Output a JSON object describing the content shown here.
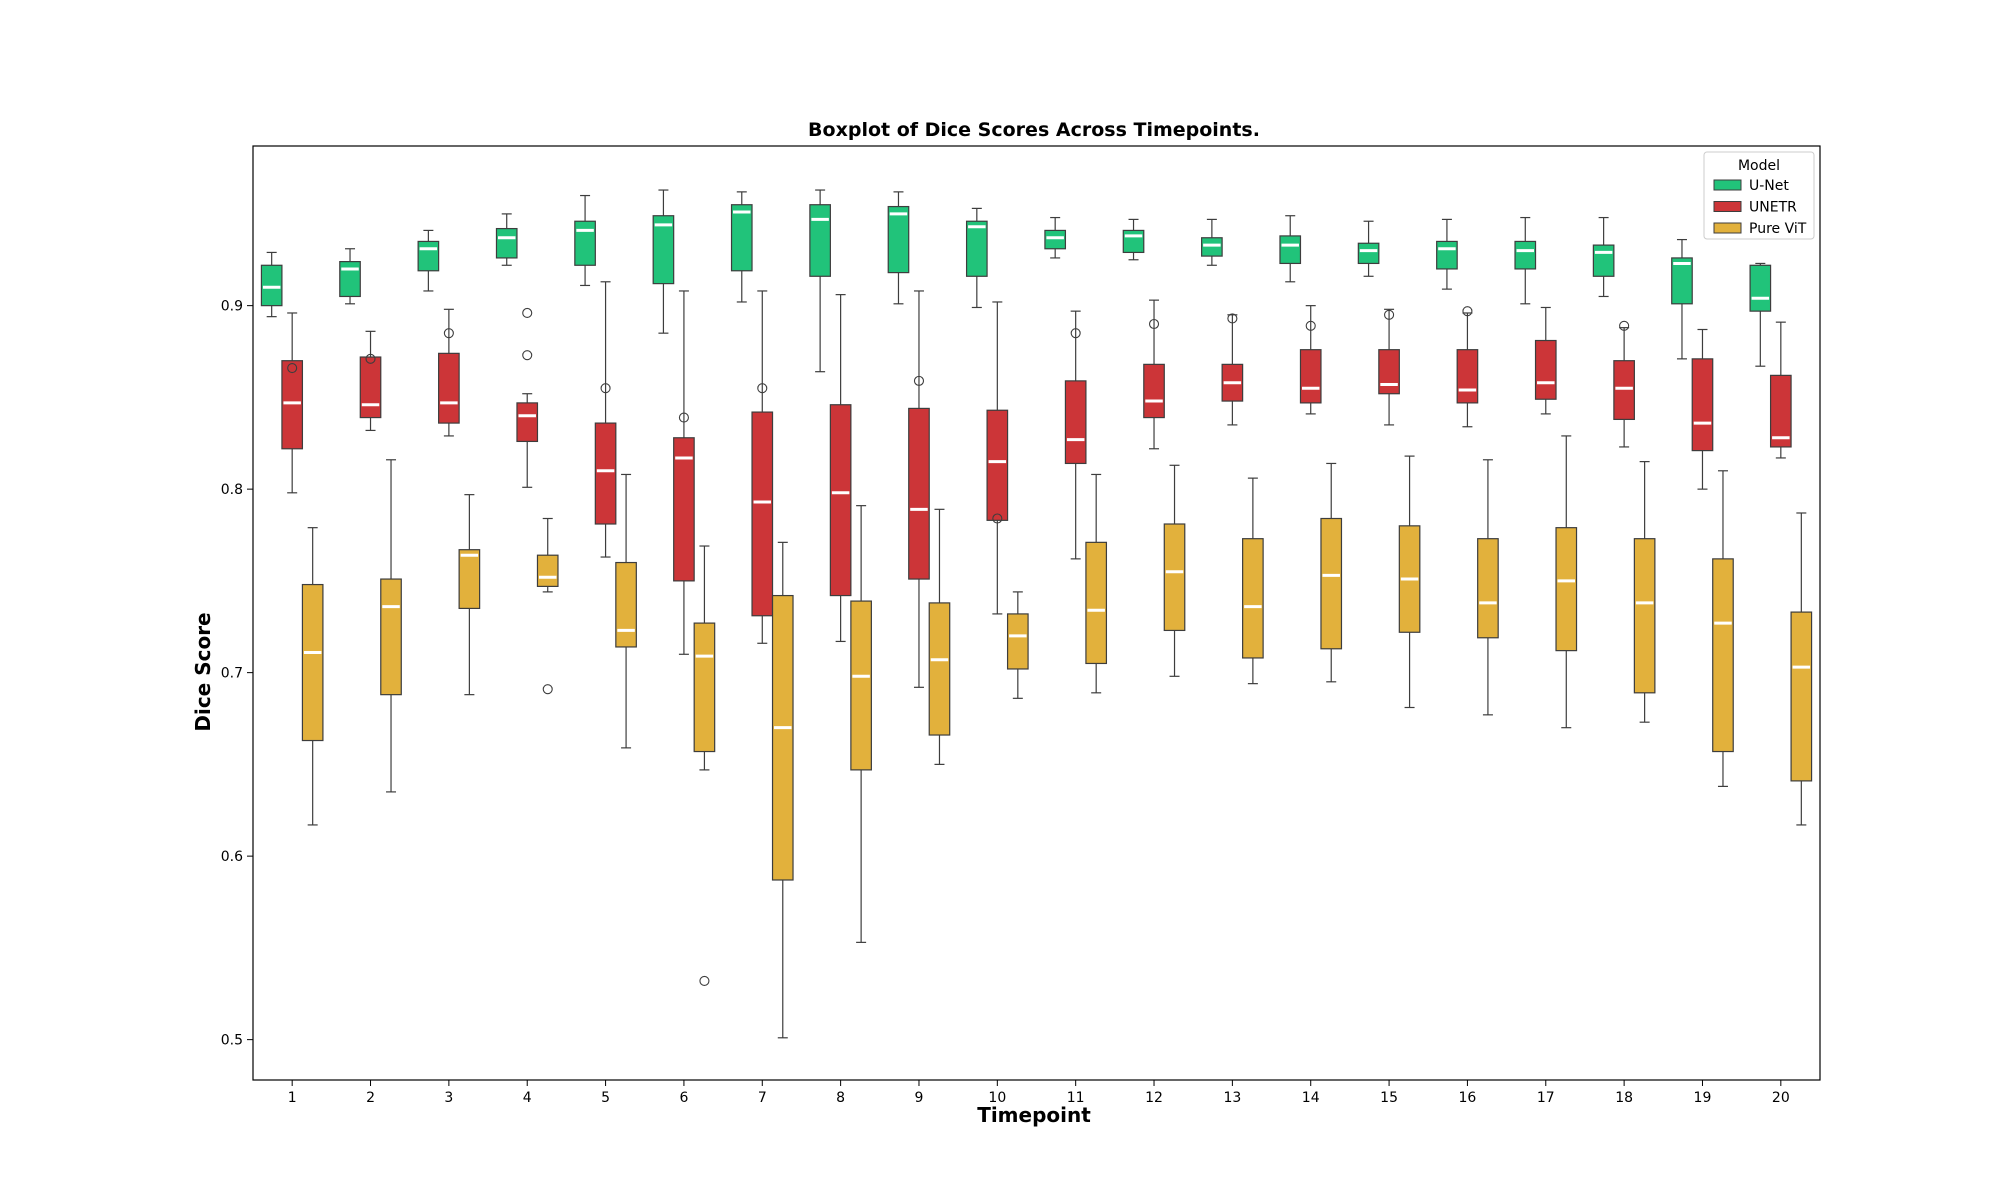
{
  "chart_data": {
    "type": "boxplot",
    "title": "Boxplot of Dice Scores Across Timepoints.",
    "xlabel": "Timepoint",
    "ylabel": "Dice Score",
    "ylim": [
      0.478,
      0.987
    ],
    "yticks": [
      0.5,
      0.6,
      0.7,
      0.8,
      0.9
    ],
    "ytick_labels": [
      "0.5",
      "0.6",
      "0.7",
      "0.8",
      "0.9"
    ],
    "categories": [
      "1",
      "2",
      "3",
      "4",
      "5",
      "6",
      "7",
      "8",
      "9",
      "10",
      "11",
      "12",
      "13",
      "14",
      "15",
      "16",
      "17",
      "18",
      "19",
      "20"
    ],
    "legend": {
      "title": "Model",
      "position": "top-right"
    },
    "series": [
      {
        "name": "U-Net",
        "color": "#21c37a",
        "stats": [
          {
            "wlo": 0.894,
            "q1": 0.9,
            "med": 0.91,
            "q3": 0.922,
            "whi": 0.929,
            "outliers": []
          },
          {
            "wlo": 0.901,
            "q1": 0.905,
            "med": 0.92,
            "q3": 0.924,
            "whi": 0.931,
            "outliers": []
          },
          {
            "wlo": 0.908,
            "q1": 0.919,
            "med": 0.931,
            "q3": 0.935,
            "whi": 0.941,
            "outliers": []
          },
          {
            "wlo": 0.922,
            "q1": 0.926,
            "med": 0.937,
            "q3": 0.942,
            "whi": 0.95,
            "outliers": []
          },
          {
            "wlo": 0.911,
            "q1": 0.922,
            "med": 0.941,
            "q3": 0.946,
            "whi": 0.96,
            "outliers": []
          },
          {
            "wlo": 0.885,
            "q1": 0.912,
            "med": 0.944,
            "q3": 0.949,
            "whi": 0.963,
            "outliers": []
          },
          {
            "wlo": 0.902,
            "q1": 0.919,
            "med": 0.951,
            "q3": 0.955,
            "whi": 0.962,
            "outliers": []
          },
          {
            "wlo": 0.864,
            "q1": 0.916,
            "med": 0.947,
            "q3": 0.955,
            "whi": 0.963,
            "outliers": []
          },
          {
            "wlo": 0.901,
            "q1": 0.918,
            "med": 0.95,
            "q3": 0.954,
            "whi": 0.962,
            "outliers": []
          },
          {
            "wlo": 0.899,
            "q1": 0.916,
            "med": 0.943,
            "q3": 0.946,
            "whi": 0.953,
            "outliers": []
          },
          {
            "wlo": 0.926,
            "q1": 0.931,
            "med": 0.937,
            "q3": 0.941,
            "whi": 0.948,
            "outliers": []
          },
          {
            "wlo": 0.925,
            "q1": 0.929,
            "med": 0.938,
            "q3": 0.941,
            "whi": 0.947,
            "outliers": []
          },
          {
            "wlo": 0.922,
            "q1": 0.927,
            "med": 0.933,
            "q3": 0.937,
            "whi": 0.947,
            "outliers": []
          },
          {
            "wlo": 0.913,
            "q1": 0.923,
            "med": 0.933,
            "q3": 0.938,
            "whi": 0.949,
            "outliers": []
          },
          {
            "wlo": 0.916,
            "q1": 0.923,
            "med": 0.93,
            "q3": 0.934,
            "whi": 0.946,
            "outliers": []
          },
          {
            "wlo": 0.909,
            "q1": 0.92,
            "med": 0.931,
            "q3": 0.935,
            "whi": 0.947,
            "outliers": []
          },
          {
            "wlo": 0.901,
            "q1": 0.92,
            "med": 0.93,
            "q3": 0.935,
            "whi": 0.948,
            "outliers": []
          },
          {
            "wlo": 0.905,
            "q1": 0.916,
            "med": 0.929,
            "q3": 0.933,
            "whi": 0.948,
            "outliers": []
          },
          {
            "wlo": 0.871,
            "q1": 0.901,
            "med": 0.923,
            "q3": 0.926,
            "whi": 0.936,
            "outliers": []
          },
          {
            "wlo": 0.867,
            "q1": 0.897,
            "med": 0.904,
            "q3": 0.922,
            "whi": 0.923,
            "outliers": []
          }
        ]
      },
      {
        "name": "UNETR",
        "color": "#cc3538",
        "stats": [
          {
            "wlo": 0.798,
            "q1": 0.822,
            "med": 0.847,
            "q3": 0.87,
            "whi": 0.896,
            "outliers": [
              0.866
            ]
          },
          {
            "wlo": 0.832,
            "q1": 0.839,
            "med": 0.846,
            "q3": 0.872,
            "whi": 0.886,
            "outliers": [
              0.871
            ]
          },
          {
            "wlo": 0.829,
            "q1": 0.836,
            "med": 0.847,
            "q3": 0.874,
            "whi": 0.898,
            "outliers": [
              0.885
            ]
          },
          {
            "wlo": 0.801,
            "q1": 0.826,
            "med": 0.84,
            "q3": 0.847,
            "whi": 0.852,
            "outliers": [
              0.873,
              0.896
            ]
          },
          {
            "wlo": 0.763,
            "q1": 0.781,
            "med": 0.81,
            "q3": 0.836,
            "whi": 0.913,
            "outliers": [
              0.855
            ]
          },
          {
            "wlo": 0.71,
            "q1": 0.75,
            "med": 0.817,
            "q3": 0.828,
            "whi": 0.908,
            "outliers": [
              0.839
            ]
          },
          {
            "wlo": 0.716,
            "q1": 0.731,
            "med": 0.793,
            "q3": 0.842,
            "whi": 0.908,
            "outliers": [
              0.855
            ]
          },
          {
            "wlo": 0.717,
            "q1": 0.742,
            "med": 0.798,
            "q3": 0.846,
            "whi": 0.906,
            "outliers": []
          },
          {
            "wlo": 0.692,
            "q1": 0.751,
            "med": 0.789,
            "q3": 0.844,
            "whi": 0.908,
            "outliers": [
              0.859
            ]
          },
          {
            "wlo": 0.732,
            "q1": 0.783,
            "med": 0.815,
            "q3": 0.843,
            "whi": 0.902,
            "outliers": [
              0.784
            ]
          },
          {
            "wlo": 0.762,
            "q1": 0.814,
            "med": 0.827,
            "q3": 0.859,
            "whi": 0.897,
            "outliers": [
              0.885
            ]
          },
          {
            "wlo": 0.822,
            "q1": 0.839,
            "med": 0.848,
            "q3": 0.868,
            "whi": 0.903,
            "outliers": [
              0.89
            ]
          },
          {
            "wlo": 0.835,
            "q1": 0.848,
            "med": 0.858,
            "q3": 0.868,
            "whi": 0.895,
            "outliers": [
              0.893
            ]
          },
          {
            "wlo": 0.841,
            "q1": 0.847,
            "med": 0.855,
            "q3": 0.876,
            "whi": 0.9,
            "outliers": [
              0.889
            ]
          },
          {
            "wlo": 0.835,
            "q1": 0.852,
            "med": 0.857,
            "q3": 0.876,
            "whi": 0.898,
            "outliers": [
              0.895
            ]
          },
          {
            "wlo": 0.834,
            "q1": 0.847,
            "med": 0.854,
            "q3": 0.876,
            "whi": 0.896,
            "outliers": [
              0.897
            ]
          },
          {
            "wlo": 0.841,
            "q1": 0.849,
            "med": 0.858,
            "q3": 0.881,
            "whi": 0.899,
            "outliers": []
          },
          {
            "wlo": 0.823,
            "q1": 0.838,
            "med": 0.855,
            "q3": 0.87,
            "whi": 0.888,
            "outliers": [
              0.889
            ]
          },
          {
            "wlo": 0.8,
            "q1": 0.821,
            "med": 0.836,
            "q3": 0.871,
            "whi": 0.887,
            "outliers": []
          },
          {
            "wlo": 0.817,
            "q1": 0.823,
            "med": 0.828,
            "q3": 0.862,
            "whi": 0.891,
            "outliers": []
          }
        ]
      },
      {
        "name": "Pure ViT",
        "color": "#e2b13c",
        "stats": [
          {
            "wlo": 0.617,
            "q1": 0.663,
            "med": 0.711,
            "q3": 0.748,
            "whi": 0.779,
            "outliers": []
          },
          {
            "wlo": 0.635,
            "q1": 0.688,
            "med": 0.736,
            "q3": 0.751,
            "whi": 0.816,
            "outliers": []
          },
          {
            "wlo": 0.688,
            "q1": 0.735,
            "med": 0.764,
            "q3": 0.767,
            "whi": 0.797,
            "outliers": []
          },
          {
            "wlo": 0.744,
            "q1": 0.747,
            "med": 0.752,
            "q3": 0.764,
            "whi": 0.784,
            "outliers": [
              0.691
            ]
          },
          {
            "wlo": 0.659,
            "q1": 0.714,
            "med": 0.723,
            "q3": 0.76,
            "whi": 0.808,
            "outliers": []
          },
          {
            "wlo": 0.647,
            "q1": 0.657,
            "med": 0.709,
            "q3": 0.727,
            "whi": 0.769,
            "outliers": [
              0.532
            ]
          },
          {
            "wlo": 0.501,
            "q1": 0.587,
            "med": 0.67,
            "q3": 0.742,
            "whi": 0.771,
            "outliers": []
          },
          {
            "wlo": 0.553,
            "q1": 0.647,
            "med": 0.698,
            "q3": 0.739,
            "whi": 0.791,
            "outliers": []
          },
          {
            "wlo": 0.65,
            "q1": 0.666,
            "med": 0.707,
            "q3": 0.738,
            "whi": 0.789,
            "outliers": []
          },
          {
            "wlo": 0.686,
            "q1": 0.702,
            "med": 0.72,
            "q3": 0.732,
            "whi": 0.744,
            "outliers": []
          },
          {
            "wlo": 0.689,
            "q1": 0.705,
            "med": 0.734,
            "q3": 0.771,
            "whi": 0.808,
            "outliers": []
          },
          {
            "wlo": 0.698,
            "q1": 0.723,
            "med": 0.755,
            "q3": 0.781,
            "whi": 0.813,
            "outliers": []
          },
          {
            "wlo": 0.694,
            "q1": 0.708,
            "med": 0.736,
            "q3": 0.773,
            "whi": 0.806,
            "outliers": []
          },
          {
            "wlo": 0.695,
            "q1": 0.713,
            "med": 0.753,
            "q3": 0.784,
            "whi": 0.814,
            "outliers": []
          },
          {
            "wlo": 0.681,
            "q1": 0.722,
            "med": 0.751,
            "q3": 0.78,
            "whi": 0.818,
            "outliers": []
          },
          {
            "wlo": 0.677,
            "q1": 0.719,
            "med": 0.738,
            "q3": 0.773,
            "whi": 0.816,
            "outliers": []
          },
          {
            "wlo": 0.67,
            "q1": 0.712,
            "med": 0.75,
            "q3": 0.779,
            "whi": 0.829,
            "outliers": []
          },
          {
            "wlo": 0.673,
            "q1": 0.689,
            "med": 0.738,
            "q3": 0.773,
            "whi": 0.815,
            "outliers": []
          },
          {
            "wlo": 0.638,
            "q1": 0.657,
            "med": 0.727,
            "q3": 0.762,
            "whi": 0.81,
            "outliers": []
          },
          {
            "wlo": 0.617,
            "q1": 0.641,
            "med": 0.703,
            "q3": 0.733,
            "whi": 0.787,
            "outliers": []
          }
        ]
      }
    ]
  }
}
